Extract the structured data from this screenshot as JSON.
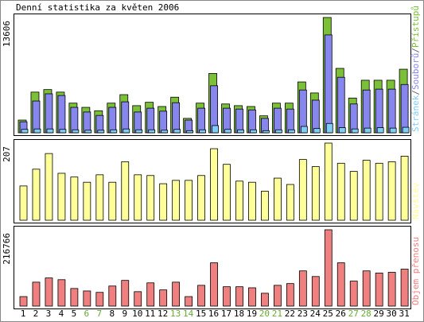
{
  "title": "Denní statistika za květen 2006",
  "chart_data": [
    {
      "type": "bar",
      "legend_separator": "/",
      "series": [
        {
          "name": "Stránek",
          "color": "#80ccf8",
          "values": [
            400,
            450,
            450,
            400,
            350,
            300,
            300,
            350,
            450,
            350,
            350,
            300,
            400,
            250,
            350,
            850,
            400,
            350,
            350,
            250,
            350,
            350,
            750,
            500,
            1100,
            600,
            450,
            550,
            600,
            550,
            650
          ]
        },
        {
          "name": "Souborů",
          "color": "#8686ee",
          "values": [
            1300,
            3750,
            4600,
            4400,
            3000,
            2450,
            2050,
            3000,
            3650,
            2450,
            2900,
            2550,
            3550,
            1500,
            2900,
            5550,
            2900,
            2800,
            2700,
            1700,
            2900,
            2800,
            5050,
            3850,
            11550,
            6550,
            3400,
            5050,
            5150,
            5150,
            5700
          ]
        },
        {
          "name": "Přístupů",
          "color": "#7cc038",
          "values": [
            1500,
            4800,
            5100,
            4800,
            3500,
            3000,
            2600,
            3500,
            4500,
            3200,
            3600,
            3100,
            4200,
            1700,
            3500,
            7000,
            3400,
            3200,
            3100,
            2000,
            3500,
            3500,
            6000,
            4700,
            13606,
            7600,
            4100,
            6200,
            6200,
            6200,
            7500
          ]
        }
      ],
      "ylim": [
        0,
        13606
      ],
      "yticks": [
        13606
      ]
    },
    {
      "type": "bar",
      "series": [
        {
          "name": "Návštěv",
          "color": "#ffff99",
          "values": [
            92,
            137,
            179,
            126,
            116,
            102,
            122,
            102,
            157,
            122,
            120,
            98,
            107,
            107,
            120,
            192,
            150,
            105,
            102,
            78,
            113,
            96,
            163,
            144,
            207,
            153,
            131,
            161,
            153,
            157,
            172
          ]
        }
      ],
      "ylim": [
        0,
        207
      ],
      "yticks": [
        207
      ]
    },
    {
      "type": "bar",
      "series": [
        {
          "name": "Objem přenosu",
          "color": "#f08080",
          "values": [
            27000,
            68000,
            80000,
            75000,
            50000,
            43000,
            39000,
            57000,
            73000,
            41000,
            66000,
            46000,
            68000,
            27000,
            59000,
            123000,
            55000,
            55000,
            52000,
            36500,
            59000,
            64000,
            100000,
            84000,
            216766,
            123000,
            71000,
            100000,
            94000,
            96000,
            105000
          ]
        }
      ],
      "ylim": [
        0,
        216766
      ],
      "yticks": [
        216766
      ],
      "categories": [
        "1",
        "2",
        "3",
        "4",
        "5",
        "6",
        "7",
        "8",
        "9",
        "10",
        "11",
        "12",
        "13",
        "14",
        "15",
        "16",
        "17",
        "18",
        "19",
        "20",
        "21",
        "22",
        "23",
        "24",
        "25",
        "26",
        "27",
        "28",
        "29",
        "30",
        "31"
      ],
      "category_colors": [
        "#000000",
        "#000000",
        "#000000",
        "#000000",
        "#000000",
        "#66aa33",
        "#66aa33",
        "#000000",
        "#000000",
        "#000000",
        "#000000",
        "#000000",
        "#66aa33",
        "#66aa33",
        "#000000",
        "#000000",
        "#000000",
        "#000000",
        "#000000",
        "#66aa33",
        "#66aa33",
        "#000000",
        "#000000",
        "#000000",
        "#000000",
        "#000000",
        "#66aa33",
        "#66aa33",
        "#000000",
        "#000000",
        "#000000"
      ]
    }
  ]
}
